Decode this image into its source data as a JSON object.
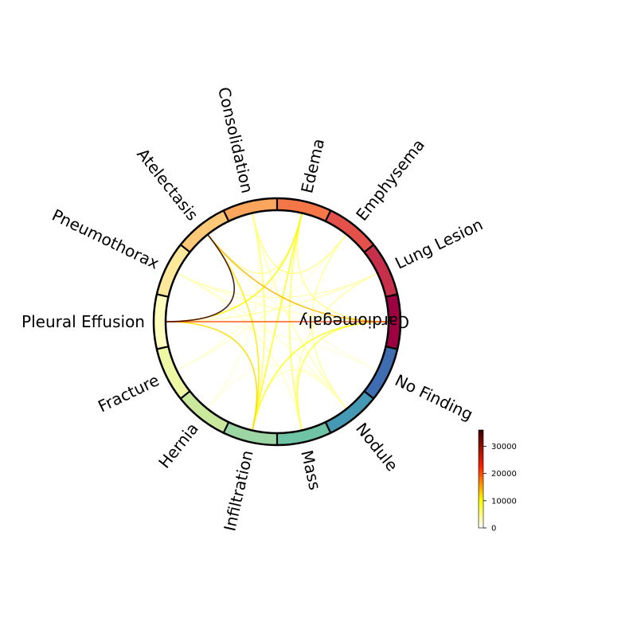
{
  "chart_data": {
    "type": "chord",
    "title": "",
    "nodes": [
      {
        "name": "Cardiomegaly",
        "color": "#9e0142"
      },
      {
        "name": "Lung Lesion",
        "color": "#c6304a"
      },
      {
        "name": "Emphysema",
        "color": "#e3514a"
      },
      {
        "name": "Edema",
        "color": "#f57748"
      },
      {
        "name": "Consolidation",
        "color": "#fca55d"
      },
      {
        "name": "Atelectasis",
        "color": "#fdc877"
      },
      {
        "name": "Pneumothorax",
        "color": "#fee89a"
      },
      {
        "name": "Pleural Effusion",
        "color": "#fffebe"
      },
      {
        "name": "Fracture",
        "color": "#eef8a4"
      },
      {
        "name": "Hernia",
        "color": "#cbe99d"
      },
      {
        "name": "Infiltration",
        "color": "#9cd6a4"
      },
      {
        "name": "Mass",
        "color": "#6ec4a4"
      },
      {
        "name": "Nodule",
        "color": "#449ab4"
      },
      {
        "name": "No Finding",
        "color": "#3f6db1"
      }
    ],
    "links": [
      {
        "source": "Pleural Effusion",
        "target": "Atelectasis",
        "value": 36000
      },
      {
        "source": "Pleural Effusion",
        "target": "Cardiomegaly",
        "value": 20000
      },
      {
        "source": "Atelectasis",
        "target": "Cardiomegaly",
        "value": 14000
      },
      {
        "source": "Atelectasis",
        "target": "Infiltration",
        "value": 11000
      },
      {
        "source": "Pleural Effusion",
        "target": "Edema",
        "value": 10500
      },
      {
        "source": "Pleural Effusion",
        "target": "Infiltration",
        "value": 12000
      },
      {
        "source": "Edema",
        "target": "Infiltration",
        "value": 9500
      },
      {
        "source": "Cardiomegaly",
        "target": "Infiltration",
        "value": 9000
      },
      {
        "source": "Cardiomegaly",
        "target": "Mass",
        "value": 7500
      },
      {
        "source": "Edema",
        "target": "Mass",
        "value": 6500
      },
      {
        "source": "Consolidation",
        "target": "Infiltration",
        "value": 6000
      },
      {
        "source": "Consolidation",
        "target": "Emphysema",
        "value": 4500
      },
      {
        "source": "Edema",
        "target": "Atelectasis",
        "value": 4000
      },
      {
        "source": "Edema",
        "target": "Cardiomegaly",
        "value": 4500
      },
      {
        "source": "Emphysema",
        "target": "Nodule",
        "value": 4000
      },
      {
        "source": "Consolidation",
        "target": "Nodule",
        "value": 3500
      },
      {
        "source": "Lung Lesion",
        "target": "Mass",
        "value": 3500
      },
      {
        "source": "Lung Lesion",
        "target": "Pleural Effusion",
        "value": 3000
      },
      {
        "source": "Lung Lesion",
        "target": "Pneumothorax",
        "value": 2800
      },
      {
        "source": "Pneumothorax",
        "target": "Mass",
        "value": 2500
      },
      {
        "source": "Pneumothorax",
        "target": "Cardiomegaly",
        "value": 2500
      },
      {
        "source": "Pneumothorax",
        "target": "Nodule",
        "value": 2200
      },
      {
        "source": "Fracture",
        "target": "Emphysema",
        "value": 2000
      },
      {
        "source": "Fracture",
        "target": "Edema",
        "value": 2000
      },
      {
        "source": "Hernia",
        "target": "Consolidation",
        "value": 1800
      },
      {
        "source": "Hernia",
        "target": "Nodule",
        "value": 1500
      },
      {
        "source": "Mass",
        "target": "Nodule",
        "value": 2500
      },
      {
        "source": "No Finding",
        "target": "Atelectasis",
        "value": 1500
      },
      {
        "source": "No Finding",
        "target": "Pleural Effusion",
        "value": 1500
      },
      {
        "source": "Infiltration",
        "target": "Nodule",
        "value": 2500
      }
    ],
    "colorbar": {
      "colormap": "hot_r",
      "range": [
        0,
        36000
      ],
      "ticks": [
        0,
        10000,
        20000,
        30000
      ]
    }
  }
}
